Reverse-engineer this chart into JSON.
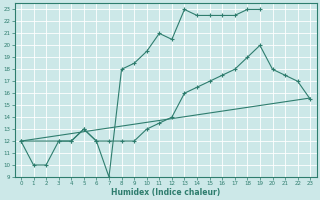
{
  "xlabel": "Humidex (Indice chaleur)",
  "ylabel": "",
  "bg_color": "#cce8e8",
  "line_color": "#2e7d6e",
  "grid_color": "#ffffff",
  "line1_x": [
    0,
    1,
    2,
    3,
    4,
    5,
    6,
    7,
    8,
    9,
    10,
    11,
    12,
    13,
    14,
    15,
    16,
    17,
    18,
    19
  ],
  "line1_y": [
    12,
    10,
    10,
    12,
    12,
    13,
    12,
    9,
    18,
    18.5,
    19.5,
    21,
    20.5,
    23,
    22.5,
    22.5,
    22.5,
    22.5,
    23,
    23
  ],
  "line2_x": [
    0,
    3,
    4,
    5,
    6,
    7,
    8,
    9,
    10,
    11,
    12,
    13,
    14,
    15,
    16,
    17,
    18,
    19,
    20,
    21,
    22,
    23
  ],
  "line2_y": [
    12,
    12,
    12,
    13,
    12,
    12,
    12,
    12,
    13,
    13.5,
    14,
    16,
    16.5,
    17,
    17.5,
    18,
    19,
    20,
    18,
    17.5,
    17,
    15.5
  ],
  "line3_x": [
    0,
    23
  ],
  "line3_y": [
    12,
    15.6
  ],
  "xlim": [
    -0.5,
    23.5
  ],
  "ylim": [
    9,
    23.5
  ],
  "yticks": [
    9,
    10,
    11,
    12,
    13,
    14,
    15,
    16,
    17,
    18,
    19,
    20,
    21,
    22,
    23
  ],
  "xticks": [
    0,
    1,
    2,
    3,
    4,
    5,
    6,
    7,
    8,
    9,
    10,
    11,
    12,
    13,
    14,
    15,
    16,
    17,
    18,
    19,
    20,
    21,
    22,
    23
  ],
  "tick_fontsize": 4.0,
  "xlabel_fontsize": 5.5,
  "linewidth": 0.8,
  "markersize": 3.0
}
